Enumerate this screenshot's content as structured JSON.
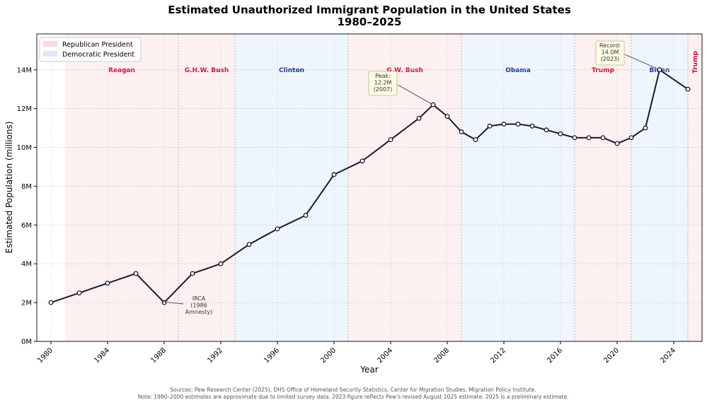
{
  "chart_data": {
    "type": "line",
    "title": "Estimated Unauthorized Immigrant Population in the United States",
    "subtitle": "1980–2025",
    "xlabel": "Year",
    "ylabel": "Estimated Population (millions)",
    "xlim": [
      1979,
      2026
    ],
    "ylim": [
      0,
      15.85
    ],
    "grid": true,
    "x_ticks": [
      1980,
      1984,
      1988,
      1992,
      1996,
      2000,
      2004,
      2008,
      2012,
      2016,
      2020,
      2024
    ],
    "y_ticks": [
      0,
      2,
      4,
      6,
      8,
      10,
      12,
      14
    ],
    "y_tick_labels": [
      "0M",
      "2M",
      "4M",
      "6M",
      "8M",
      "10M",
      "12M",
      "14M"
    ],
    "x": [
      1980,
      1982,
      1984,
      1986,
      1988,
      1990,
      1992,
      1994,
      1996,
      1998,
      2000,
      2002,
      2004,
      2006,
      2007,
      2008,
      2009,
      2010,
      2011,
      2012,
      2013,
      2014,
      2015,
      2016,
      2017,
      2018,
      2019,
      2020,
      2021,
      2022,
      2023,
      2025
    ],
    "values": [
      2.0,
      2.5,
      3.0,
      3.5,
      2.0,
      3.5,
      4.0,
      5.0,
      5.8,
      6.5,
      8.6,
      9.3,
      10.4,
      11.5,
      12.2,
      11.6,
      10.8,
      10.4,
      11.1,
      11.2,
      11.2,
      11.1,
      10.9,
      10.7,
      10.5,
      10.5,
      10.5,
      10.2,
      10.5,
      11.0,
      14.0,
      13.0
    ],
    "line_color": "#1a1a2e",
    "legend": {
      "placement": "top-left",
      "entries": [
        {
          "label": "Republican President",
          "color": "#fcd9db"
        },
        {
          "label": "Democratic President",
          "color": "#d9e8fb"
        }
      ]
    },
    "eras": [
      {
        "name": "Reagan",
        "start": 1981,
        "end": 1989,
        "party": "R"
      },
      {
        "name": "G.H.W. Bush",
        "start": 1989,
        "end": 1993,
        "party": "R"
      },
      {
        "name": "Clinton",
        "start": 1993,
        "end": 2001,
        "party": "D"
      },
      {
        "name": "G.W. Bush",
        "start": 2001,
        "end": 2009,
        "party": "R"
      },
      {
        "name": "Obama",
        "start": 2009,
        "end": 2017,
        "party": "D"
      },
      {
        "name": "Trump",
        "start": 2017,
        "end": 2021,
        "party": "R"
      },
      {
        "name": "Biden",
        "start": 2021,
        "end": 2025,
        "party": "D"
      },
      {
        "name": "Trump",
        "start": 2025,
        "end": 2026,
        "party": "R"
      }
    ],
    "party_colors": {
      "R": "#fdf0f0",
      "D": "#eef5fd",
      "R_text": "#cc1133",
      "D_text": "#1a3a8a"
    },
    "annotations": [
      {
        "lines": [
          "IRCA",
          "(1986",
          "Amnesty)"
        ],
        "x": 1988,
        "y": 2.0,
        "boxed": false
      },
      {
        "lines": [
          "Peak:",
          "12.2M",
          "(2007)"
        ],
        "x": 2007,
        "y": 12.2,
        "boxed": true
      },
      {
        "lines": [
          "Record:",
          "14.0M",
          "(2023)"
        ],
        "x": 2023,
        "y": 14.0,
        "boxed": true
      }
    ]
  },
  "footer": {
    "sources": "Sources: Pew Research Center (2025), DHS Office of Homeland Security Statistics, Center for Migration Studies, Migration Policy Institute.",
    "note": "Note: 1980–2000 estimates are approximate due to limited survey data. 2023 figure reflects Pew's revised August 2025 estimate. 2025 is a preliminary estimate."
  }
}
